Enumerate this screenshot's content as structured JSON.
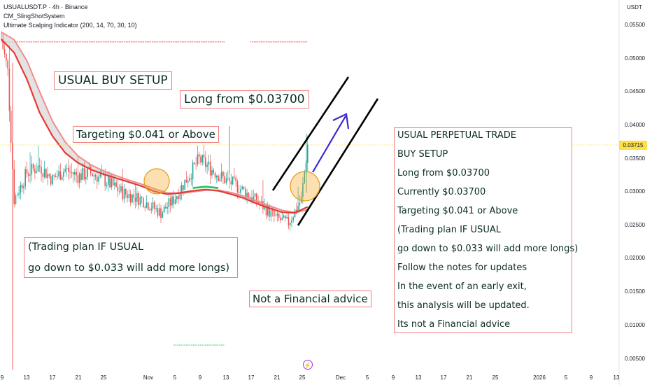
{
  "header": {
    "symbol_line": "USUALUSDT.P · 4h · Binance",
    "indicator_1": "CM_SlingShotSystem",
    "indicator_2": "Ultimate Scalping Indicator (200, 14, 70, 30, 10)"
  },
  "currency": "USDT",
  "current_price_label": "0.03715",
  "annotations": {
    "buy_setup": "USUAL BUY SETUP",
    "long_from": "Long from $0.03700",
    "targeting": "Targeting $0.041 or Above",
    "plan_line_1": "(Trading plan IF USUAL",
    "plan_line_2": "go down to $0.033 will add more longs)",
    "disclaimer": "Not a Financial advice"
  },
  "info_box": {
    "lines": [
      "USUAL PERPETUAL TRADE",
      "BUY SETUP",
      "Long from $0.03700",
      "Currently $0.03700",
      "Targeting $0.041 or Above",
      "(Trading plan IF USUAL",
      "go down to $0.033 will add more longs)",
      "Follow the notes for updates",
      "In the event of an early exit,",
      "this analysis will be updated.",
      "Its not a Financial advice"
    ]
  },
  "colors": {
    "up": "#26a69a",
    "down": "#ef5350",
    "ema_fast": "#e53935",
    "ema_slow": "#f28b8b",
    "cloud": "#d9d9d9",
    "highlight": "#f5a623",
    "arrow": "#3b27c9",
    "channel": "#000000",
    "reference": "#f03c3c",
    "support": "#22c55e"
  },
  "chart_data": {
    "type": "candlestick",
    "title": "USUALUSDT.P · 4h · Binance",
    "y_axis": {
      "ticks": [
        "0.05500",
        "0.05000",
        "0.04500",
        "0.04000",
        "0.03500",
        "0.03000",
        "0.02500",
        "0.02000",
        "0.01500",
        "0.01000",
        "0.00500"
      ],
      "range": [
        0.003,
        0.0575
      ]
    },
    "x_axis": {
      "ticks": [
        "9",
        "13",
        "17",
        "21",
        "25",
        "Nov",
        "5",
        "9",
        "13",
        "17",
        "21",
        "25",
        "Dec",
        "5",
        "9",
        "13",
        "17",
        "21",
        "25",
        "2026",
        "5",
        "9",
        "13"
      ]
    },
    "current_price": 0.03715,
    "close_path": [
      {
        "date": "Oct 9",
        "close": 0.053
      },
      {
        "date": "Oct 10",
        "close": 0.048
      },
      {
        "date": "Oct 11",
        "close": 0.029
      },
      {
        "date": "Oct 12",
        "close": 0.031
      },
      {
        "date": "Oct 13",
        "close": 0.033
      },
      {
        "date": "Oct 15",
        "close": 0.034
      },
      {
        "date": "Oct 17",
        "close": 0.032
      },
      {
        "date": "Oct 19",
        "close": 0.0335
      },
      {
        "date": "Oct 21",
        "close": 0.0325
      },
      {
        "date": "Oct 23",
        "close": 0.033
      },
      {
        "date": "Oct 25",
        "close": 0.032
      },
      {
        "date": "Oct 28",
        "close": 0.03
      },
      {
        "date": "Oct 31",
        "close": 0.029
      },
      {
        "date": "Nov 3",
        "close": 0.027
      },
      {
        "date": "Nov 5",
        "close": 0.029
      },
      {
        "date": "Nov 7",
        "close": 0.032
      },
      {
        "date": "Nov 9",
        "close": 0.035
      },
      {
        "date": "Nov 11",
        "close": 0.0335
      },
      {
        "date": "Nov 13",
        "close": 0.032
      },
      {
        "date": "Nov 15",
        "close": 0.031
      },
      {
        "date": "Nov 17",
        "close": 0.0295
      },
      {
        "date": "Nov 19",
        "close": 0.028
      },
      {
        "date": "Nov 21",
        "close": 0.0262
      },
      {
        "date": "Nov 23",
        "close": 0.0255
      },
      {
        "date": "Nov 25",
        "close": 0.029
      },
      {
        "date": "Nov 26",
        "close": 0.0372
      }
    ],
    "series": [
      {
        "name": "CM_SlingShotSystem",
        "values": [
          0.053,
          0.051,
          0.047,
          0.042,
          0.0385,
          0.036,
          0.0345,
          0.0335,
          0.0328,
          0.0322,
          0.0316,
          0.031,
          0.0302,
          0.0298,
          0.03,
          0.0303,
          0.0305,
          0.0303,
          0.0298,
          0.0292,
          0.0284,
          0.0277,
          0.0271,
          0.027,
          0.0279
        ]
      }
    ],
    "reference_levels": [
      {
        "label": "",
        "value": 0.0526,
        "from": "Oct 9",
        "to": "Nov 13"
      },
      {
        "label": "",
        "value": 0.0526,
        "from": "Nov 17",
        "to": "Nov 26"
      },
      {
        "label": "",
        "value": 0.0072,
        "from": "Nov 5",
        "to": "Nov 13"
      }
    ],
    "grid": false,
    "legend": "top-left"
  }
}
